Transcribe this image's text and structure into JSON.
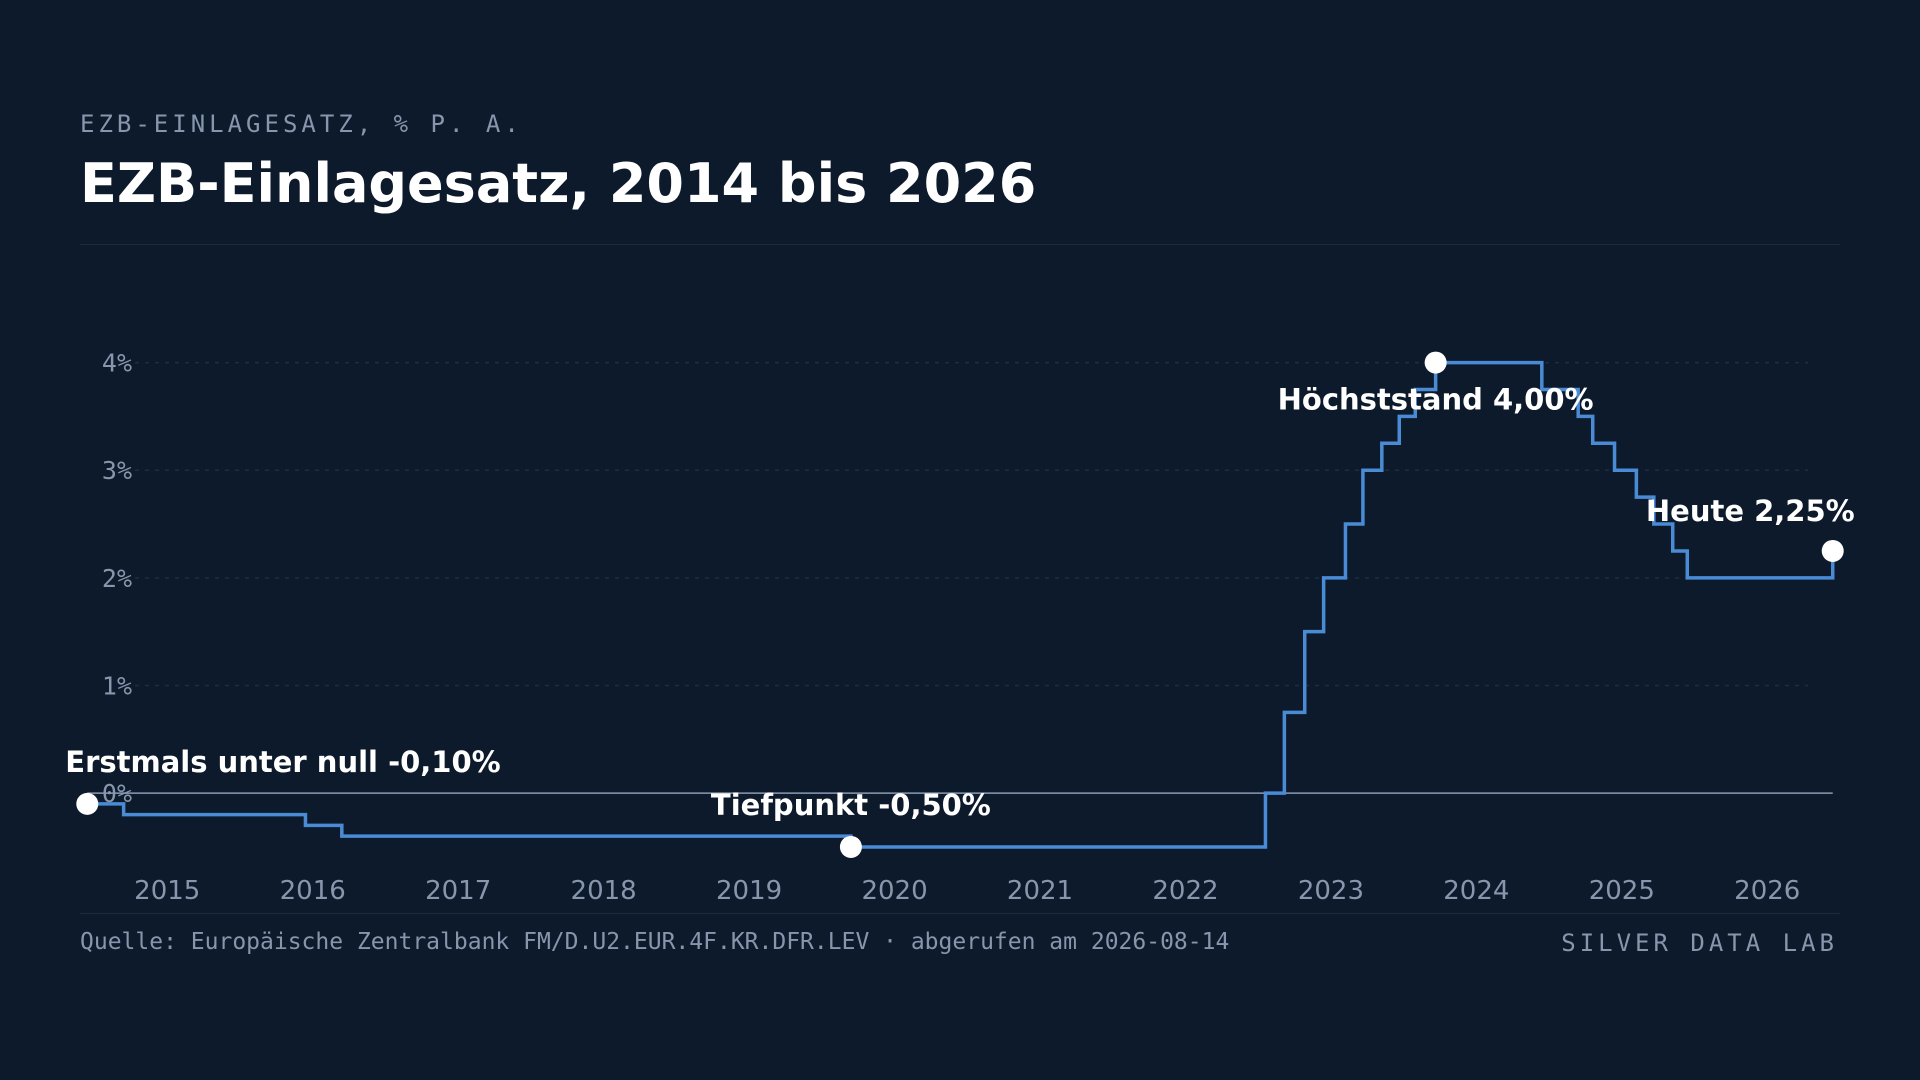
{
  "header": {
    "kicker": "EZB-EINLAGESATZ, % P. A.",
    "title": "EZB-Einlagesatz, 2014 bis 2026"
  },
  "footer": {
    "source": "Quelle: Europäische Zentralbank FM/D.U2.EUR.4F.KR.DFR.LEV · abgerufen am 2026-08-14",
    "brand": "SILVER DATA LAB"
  },
  "colors": {
    "background": "#0d1a2b",
    "line": "#4a8bd6",
    "zero_line": "#8a9ab3",
    "grid": "#1f2d42",
    "text_muted": "#8796ad",
    "marker": "#ffffff"
  },
  "chart_data": {
    "type": "line",
    "step": true,
    "title": "EZB-Einlagesatz, 2014 bis 2026",
    "xlabel": "",
    "ylabel": "",
    "xlim": [
      2014.4,
      2026.5
    ],
    "ylim": [
      -0.9,
      4.6
    ],
    "grid": true,
    "y_ticks": [
      {
        "value": 0,
        "label": "0%"
      },
      {
        "value": 1,
        "label": "1%"
      },
      {
        "value": 2,
        "label": "2%"
      },
      {
        "value": 3,
        "label": "3%"
      },
      {
        "value": 4,
        "label": "4%"
      }
    ],
    "x_ticks": [
      {
        "value": 2015,
        "label": "2015"
      },
      {
        "value": 2016,
        "label": "2016"
      },
      {
        "value": 2017,
        "label": "2017"
      },
      {
        "value": 2018,
        "label": "2018"
      },
      {
        "value": 2019,
        "label": "2019"
      },
      {
        "value": 2020,
        "label": "2020"
      },
      {
        "value": 2021,
        "label": "2021"
      },
      {
        "value": 2022,
        "label": "2022"
      },
      {
        "value": 2023,
        "label": "2023"
      },
      {
        "value": 2024,
        "label": "2024"
      },
      {
        "value": 2025,
        "label": "2025"
      },
      {
        "value": 2026,
        "label": "2026"
      }
    ],
    "series": [
      {
        "points": [
          [
            2014.45,
            -0.1
          ],
          [
            2014.7,
            -0.2
          ],
          [
            2015.95,
            -0.3
          ],
          [
            2016.2,
            -0.4
          ],
          [
            2019.7,
            -0.5
          ],
          [
            2022.55,
            0.0
          ],
          [
            2022.68,
            0.75
          ],
          [
            2022.82,
            1.5
          ],
          [
            2022.95,
            2.0
          ],
          [
            2023.1,
            2.5
          ],
          [
            2023.22,
            3.0
          ],
          [
            2023.35,
            3.25
          ],
          [
            2023.47,
            3.5
          ],
          [
            2023.58,
            3.75
          ],
          [
            2023.72,
            4.0
          ],
          [
            2024.45,
            3.75
          ],
          [
            2024.7,
            3.5
          ],
          [
            2024.8,
            3.25
          ],
          [
            2024.95,
            3.0
          ],
          [
            2025.1,
            2.75
          ],
          [
            2025.22,
            2.5
          ],
          [
            2025.35,
            2.25
          ],
          [
            2025.45,
            2.0
          ],
          [
            2026.45,
            2.25
          ]
        ]
      }
    ],
    "annotations": [
      {
        "x": 2014.45,
        "y": -0.1,
        "label": "Erstmals unter null -0,10%"
      },
      {
        "x": 2019.7,
        "y": -0.5,
        "label": "Tiefpunkt -0,50%"
      },
      {
        "x": 2023.72,
        "y": 4.0,
        "label": "Höchststand 4,00%"
      },
      {
        "x": 2026.45,
        "y": 2.25,
        "label": "Heute 2,25%"
      }
    ]
  }
}
